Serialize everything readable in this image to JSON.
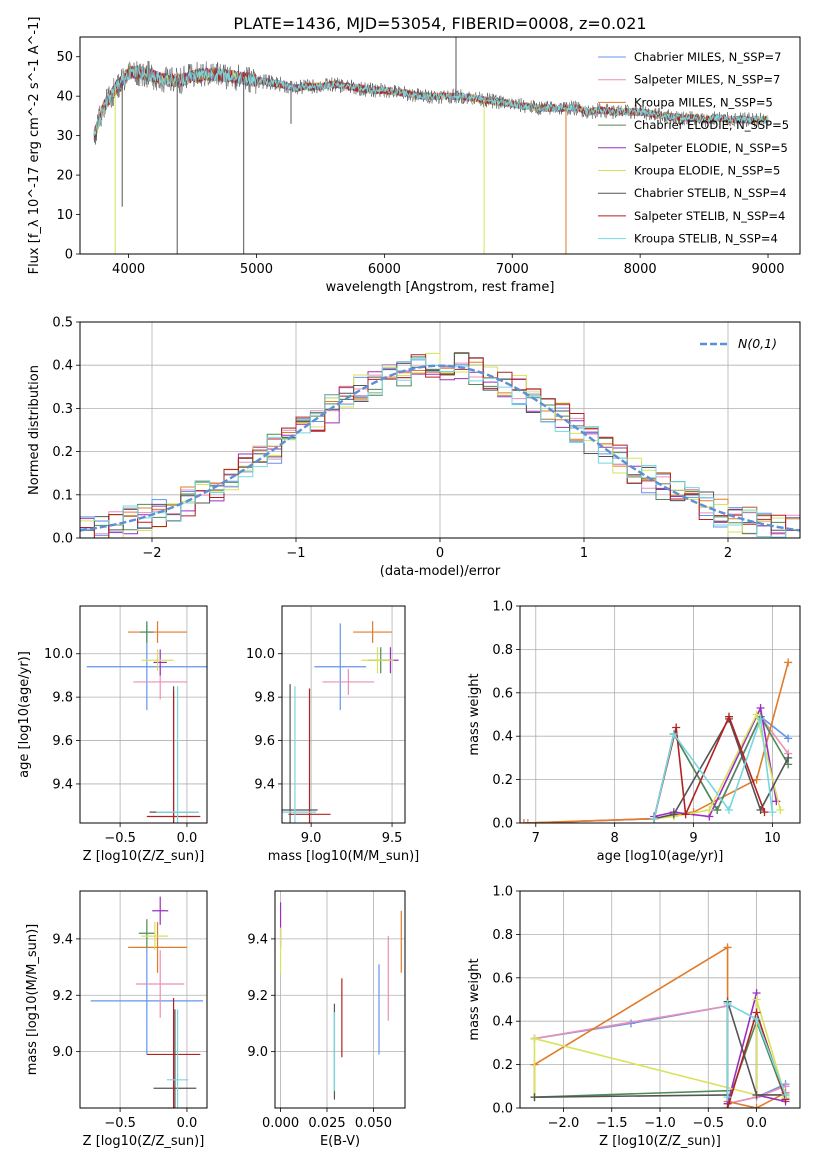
{
  "figure": {
    "title": "PLATE=1436, MJD=53054, FIBERID=0008, z=0.021",
    "colors": [
      "#6495ed",
      "#e98fb8",
      "#e07b2a",
      "#4e8b57",
      "#9b30c0",
      "#d8e25a",
      "#555555",
      "#b22222",
      "#76d7e0"
    ]
  },
  "chart_data": [
    {
      "id": "spectrum",
      "type": "line",
      "xlabel": "wavelength [Angstrom, rest frame]",
      "ylabel": "Flux [f_λ 10^-17 erg cm^-2 s^-1 A^-1]",
      "xlim": [
        3620,
        9250
      ],
      "ylim": [
        0,
        55
      ],
      "xticks": [
        4000,
        5000,
        6000,
        7000,
        8000,
        9000
      ],
      "yticks": [
        0,
        10,
        20,
        30,
        40,
        50
      ],
      "grid": false,
      "legend_position": "top-right",
      "continuum": {
        "x": [
          3730,
          3800,
          3900,
          4000,
          4100,
          4200,
          4300,
          4400,
          4500,
          4600,
          4700,
          4800,
          4900,
          5000,
          5100,
          5200,
          5300,
          5400,
          5500,
          5600,
          5700,
          5800,
          5900,
          6000,
          6100,
          6200,
          6300,
          6400,
          6500,
          6600,
          6700,
          6800,
          6900,
          7000,
          7100,
          7200,
          7300,
          7400,
          7500,
          7600,
          7700,
          7800,
          7900,
          8000,
          8100,
          8200,
          8300,
          8400,
          8500,
          8600,
          8700,
          8800,
          8900,
          9000
        ],
        "y": [
          30,
          37,
          42,
          46,
          46,
          45,
          44,
          44,
          45,
          45.5,
          45.5,
          45,
          44.5,
          44,
          43.5,
          43,
          42,
          42.5,
          42.5,
          43,
          42.5,
          42,
          41.5,
          41.5,
          41,
          40.5,
          40,
          40,
          40,
          40,
          39.5,
          39,
          38.5,
          38,
          37.5,
          37,
          37,
          37,
          37,
          36,
          36.5,
          36,
          36,
          36,
          35.5,
          35,
          34.5,
          34.5,
          34,
          34.5,
          34,
          34,
          34,
          34
        ]
      },
      "series": [
        {
          "name": "Chabrier MILES, N_SSP=7",
          "color": "#6495ed"
        },
        {
          "name": "Salpeter MILES, N_SSP=7",
          "color": "#e98fb8"
        },
        {
          "name": "Kroupa MILES, N_SSP=5",
          "color": "#e07b2a"
        },
        {
          "name": "Chabrier ELODIE, N_SSP=5",
          "color": "#4e8b57"
        },
        {
          "name": "Salpeter ELODIE, N_SSP=5",
          "color": "#9b30c0"
        },
        {
          "name": "Kroupa ELODIE, N_SSP=5",
          "color": "#d8e25a"
        },
        {
          "name": "Chabrier STELIB, N_SSP=4",
          "color": "#555555"
        },
        {
          "name": "Salpeter STELIB, N_SSP=4",
          "color": "#b22222"
        },
        {
          "name": "Kroupa STELIB, N_SSP=4",
          "color": "#76d7e0"
        }
      ]
    },
    {
      "id": "residuals",
      "type": "step",
      "xlabel": "(data-model)/error",
      "ylabel": "Normed distribution",
      "xlim": [
        -2.5,
        2.5
      ],
      "ylim": [
        0,
        0.5
      ],
      "xticks": [
        -2,
        -1,
        0,
        1,
        2
      ],
      "yticks": [
        0.0,
        0.1,
        0.2,
        0.3,
        0.4,
        0.5
      ],
      "grid": true,
      "legend_position": "top-right",
      "gaussian_label": "N(0,1)",
      "bin_width": 0.1
    },
    {
      "id": "age_vs_Z",
      "type": "errorbar",
      "xlabel": "Z [log10(Z/Z_sun)]",
      "ylabel": "age [log10(age/yr)]",
      "xlim": [
        -0.8,
        0.15
      ],
      "ylim": [
        9.22,
        10.22
      ],
      "xticks": [
        -0.5,
        0.0
      ],
      "yticks": [
        9.4,
        9.6,
        9.8,
        10.0
      ],
      "grid": true,
      "points": [
        {
          "x": -0.3,
          "y": 9.94,
          "xerr": 0.45,
          "yerr": 0.2,
          "color": "#6495ed"
        },
        {
          "x": -0.2,
          "y": 9.87,
          "xerr": 0.2,
          "yerr": 0.08,
          "color": "#e98fb8"
        },
        {
          "x": -0.22,
          "y": 10.1,
          "xerr": 0.22,
          "yerr": 0.05,
          "color": "#e07b2a"
        },
        {
          "x": -0.3,
          "y": 10.1,
          "xerr": 0.05,
          "yerr": 0.05,
          "color": "#4e8b57"
        },
        {
          "x": -0.2,
          "y": 9.96,
          "xerr": 0.05,
          "yerr": 0.06,
          "color": "#9b30c0"
        },
        {
          "x": -0.22,
          "y": 9.97,
          "xerr": 0.12,
          "yerr": 0.05,
          "color": "#d8e25a"
        },
        {
          "x": -0.1,
          "y": 9.27,
          "xerr": 0.18,
          "yerr": 0.58,
          "color": "#555555"
        },
        {
          "x": -0.1,
          "y": 9.25,
          "xerr": 0.2,
          "yerr": 0.58,
          "color": "#b22222"
        },
        {
          "x": -0.07,
          "y": 9.27,
          "xerr": 0.16,
          "yerr": 0.58,
          "color": "#76d7e0"
        }
      ]
    },
    {
      "id": "age_vs_mass",
      "type": "errorbar",
      "xlabel": "mass [log10(M/M_sun)]",
      "ylabel": "",
      "xlim": [
        8.82,
        9.58
      ],
      "ylim": [
        9.22,
        10.22
      ],
      "xticks": [
        9.0,
        9.5
      ],
      "yticks": [
        9.4,
        9.6,
        9.8,
        10.0
      ],
      "grid": true,
      "points": [
        {
          "x": 9.18,
          "y": 9.94,
          "xerr": 0.16,
          "yerr": 0.2,
          "color": "#6495ed"
        },
        {
          "x": 9.23,
          "y": 9.87,
          "xerr": 0.16,
          "yerr": 0.06,
          "color": "#e98fb8"
        },
        {
          "x": 9.38,
          "y": 10.1,
          "xerr": 0.12,
          "yerr": 0.05,
          "color": "#e07b2a"
        },
        {
          "x": 9.43,
          "y": 9.97,
          "xerr": 0.08,
          "yerr": 0.06,
          "color": "#4e8b57"
        },
        {
          "x": 9.49,
          "y": 9.97,
          "xerr": 0.05,
          "yerr": 0.06,
          "color": "#9b30c0"
        },
        {
          "x": 9.41,
          "y": 9.97,
          "xerr": 0.1,
          "yerr": 0.06,
          "color": "#d8e25a"
        },
        {
          "x": 8.87,
          "y": 9.28,
          "xerr": 0.17,
          "yerr": 0.58,
          "color": "#555555"
        },
        {
          "x": 8.99,
          "y": 9.26,
          "xerr": 0.13,
          "yerr": 0.58,
          "color": "#b22222"
        },
        {
          "x": 8.9,
          "y": 9.27,
          "xerr": 0.13,
          "yerr": 0.58,
          "color": "#76d7e0"
        }
      ]
    },
    {
      "id": "weight_vs_age",
      "type": "line",
      "xlabel": "age [log10(age/yr)]",
      "ylabel": "mass weight",
      "xlim": [
        6.8,
        10.35
      ],
      "ylim": [
        0,
        1.0
      ],
      "xticks": [
        7,
        8,
        9,
        10
      ],
      "yticks": [
        0.0,
        0.2,
        0.4,
        0.6,
        0.8,
        1.0
      ],
      "grid": true,
      "series": [
        {
          "color": "#6495ed",
          "x": [
            6.9,
            8.5,
            8.75,
            9.3,
            9.85,
            10.2
          ],
          "y": [
            0.0,
            0.02,
            0.41,
            0.06,
            0.49,
            0.39
          ]
        },
        {
          "color": "#e98fb8",
          "x": [
            6.9,
            8.5,
            8.75,
            9.3,
            9.85,
            10.2
          ],
          "y": [
            0.0,
            0.02,
            0.41,
            0.06,
            0.49,
            0.32
          ]
        },
        {
          "color": "#e07b2a",
          "x": [
            6.85,
            8.5,
            9.0,
            9.8,
            10.2
          ],
          "y": [
            0.0,
            0.02,
            0.05,
            0.2,
            0.74
          ]
        },
        {
          "color": "#4e8b57",
          "x": [
            8.5,
            8.75,
            9.3,
            9.85,
            10.2
          ],
          "y": [
            0.02,
            0.41,
            0.06,
            0.49,
            0.27
          ]
        },
        {
          "color": "#9b30c0",
          "x": [
            8.5,
            8.75,
            9.2,
            9.85,
            10.05
          ],
          "y": [
            0.03,
            0.05,
            0.03,
            0.53,
            0.1
          ]
        },
        {
          "color": "#d8e25a",
          "x": [
            8.5,
            8.75,
            9.2,
            9.8,
            10.1
          ],
          "y": [
            0.02,
            0.03,
            0.06,
            0.5,
            0.06
          ]
        },
        {
          "color": "#555555",
          "x": [
            8.5,
            8.75,
            9.45,
            9.85,
            10.2
          ],
          "y": [
            0.02,
            0.04,
            0.48,
            0.06,
            0.3
          ]
        },
        {
          "color": "#b22222",
          "x": [
            8.5,
            8.78,
            8.9,
            9.45,
            9.9
          ],
          "y": [
            0.02,
            0.44,
            0.04,
            0.49,
            0.05
          ]
        },
        {
          "color": "#76d7e0",
          "x": [
            8.5,
            8.75,
            9.45,
            9.85,
            10.0
          ],
          "y": [
            0.02,
            0.41,
            0.06,
            0.48,
            0.05
          ]
        }
      ]
    },
    {
      "id": "mass_vs_Z",
      "type": "errorbar",
      "xlabel": "Z [log10(Z/Z_sun)]",
      "ylabel": "mass [log10(M/M_sun)]",
      "xlim": [
        -0.8,
        0.15
      ],
      "ylim": [
        8.8,
        9.57
      ],
      "xticks": [
        -0.5,
        0.0
      ],
      "yticks": [
        9.0,
        9.2,
        9.4
      ],
      "grid": true,
      "points": [
        {
          "x": -0.3,
          "y": 9.18,
          "xerr": 0.42,
          "yerr": 0.19,
          "color": "#6495ed"
        },
        {
          "x": -0.2,
          "y": 9.24,
          "xerr": 0.18,
          "yerr": 0.12,
          "color": "#e98fb8"
        },
        {
          "x": -0.22,
          "y": 9.37,
          "xerr": 0.22,
          "yerr": 0.09,
          "color": "#e07b2a"
        },
        {
          "x": -0.3,
          "y": 9.42,
          "xerr": 0.06,
          "yerr": 0.05,
          "color": "#4e8b57"
        },
        {
          "x": -0.2,
          "y": 9.5,
          "xerr": 0.06,
          "yerr": 0.05,
          "color": "#9b30c0"
        },
        {
          "x": -0.24,
          "y": 9.41,
          "xerr": 0.1,
          "yerr": 0.05,
          "color": "#d8e25a"
        },
        {
          "x": -0.09,
          "y": 8.87,
          "xerr": 0.16,
          "yerr": 0.28,
          "color": "#555555"
        },
        {
          "x": -0.1,
          "y": 8.99,
          "xerr": 0.2,
          "yerr": 0.2,
          "color": "#b22222"
        },
        {
          "x": -0.07,
          "y": 8.9,
          "xerr": 0.08,
          "yerr": 0.25,
          "color": "#76d7e0"
        }
      ]
    },
    {
      "id": "mass_vs_ebv",
      "type": "errorbar",
      "xlabel": "E(B-V)",
      "ylabel": "",
      "xlim": [
        -0.003,
        0.067
      ],
      "ylim": [
        8.8,
        9.57
      ],
      "xticks": [
        0.0,
        0.025,
        0.05
      ],
      "xtick_labels": [
        "0.000",
        "0.025",
        "0.050"
      ],
      "yticks": [
        9.0,
        9.2,
        9.4
      ],
      "grid": true,
      "points": [
        {
          "x": 0.053,
          "y": 9.15,
          "yerr": 0.16,
          "color": "#6495ed"
        },
        {
          "x": 0.058,
          "y": 9.26,
          "yerr": 0.15,
          "color": "#e98fb8"
        },
        {
          "x": 0.065,
          "y": 9.39,
          "yerr": 0.11,
          "color": "#e07b2a"
        },
        {
          "x": 0.0,
          "y": 9.45,
          "yerr": 0.08,
          "color": "#9b30c0"
        },
        {
          "x": 0.0,
          "y": 9.36,
          "yerr": 0.08,
          "color": "#d8e25a"
        },
        {
          "x": 0.029,
          "y": 9.0,
          "yerr": 0.17,
          "color": "#555555"
        },
        {
          "x": 0.033,
          "y": 9.12,
          "yerr": 0.14,
          "color": "#b22222"
        },
        {
          "x": 0.029,
          "y": 9.0,
          "yerr": 0.14,
          "color": "#76d7e0"
        }
      ]
    },
    {
      "id": "weight_vs_Z",
      "type": "line",
      "xlabel": "Z [log10(Z/Z_sun)]",
      "ylabel": "mass weight",
      "xlim": [
        -2.45,
        0.45
      ],
      "ylim": [
        0,
        1.0
      ],
      "xticks": [
        -2.0,
        -1.5,
        -1.0,
        -0.5,
        0.0
      ],
      "yticks": [
        0.0,
        0.2,
        0.4,
        0.6,
        0.8,
        1.0
      ],
      "grid": true,
      "series": [
        {
          "color": "#6495ed",
          "x": [
            -2.3,
            -1.3,
            -0.3,
            -0.3,
            0.0,
            0.3
          ],
          "y": [
            0.32,
            0.39,
            0.47,
            0.02,
            0.05,
            0.11
          ]
        },
        {
          "color": "#e98fb8",
          "x": [
            -2.3,
            -0.3,
            -0.3,
            0.0,
            0.3
          ],
          "y": [
            0.32,
            0.47,
            0.02,
            0.05,
            0.1
          ]
        },
        {
          "color": "#e07b2a",
          "x": [
            -2.3,
            -2.3,
            -0.3,
            -0.3,
            0.0,
            0.3
          ],
          "y": [
            0.05,
            0.2,
            0.74,
            0.03,
            0.0,
            0.07
          ]
        },
        {
          "color": "#4e8b57",
          "x": [
            -2.3,
            -0.3,
            -0.3,
            0.0,
            0.3
          ],
          "y": [
            0.05,
            0.08,
            0.02,
            0.4,
            0.04
          ]
        },
        {
          "color": "#9b30c0",
          "x": [
            -0.3,
            0.0,
            0.0,
            0.3
          ],
          "y": [
            0.02,
            0.53,
            0.06,
            0.03
          ]
        },
        {
          "color": "#d8e25a",
          "x": [
            -2.3,
            -2.3,
            0.0,
            0.0,
            0.3
          ],
          "y": [
            0.05,
            0.32,
            0.06,
            0.5,
            0.05
          ]
        },
        {
          "color": "#555555",
          "x": [
            -2.3,
            -0.3,
            -0.3,
            0.0,
            0.3
          ],
          "y": [
            0.05,
            0.06,
            0.49,
            0.06,
            0.06
          ]
        },
        {
          "color": "#b22222",
          "x": [
            -0.3,
            0.0,
            0.3
          ],
          "y": [
            0.0,
            0.44,
            0.04
          ]
        },
        {
          "color": "#76d7e0",
          "x": [
            -0.3,
            -0.3,
            0.0,
            0.3
          ],
          "y": [
            0.05,
            0.48,
            0.41,
            0.06
          ]
        }
      ]
    }
  ]
}
